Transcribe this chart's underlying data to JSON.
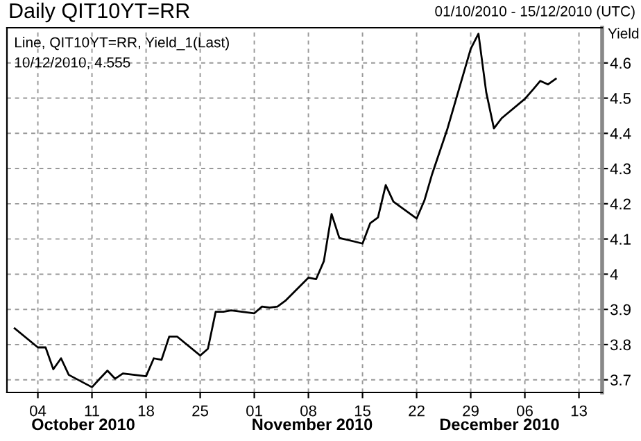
{
  "chart_data": {
    "type": "line",
    "title": "Daily QIT10YT=RR",
    "subtitle": "01/10/2010 - 15/12/2010 (UTC)",
    "ylabel": "Yield",
    "annotations": [
      "Line, QIT10YT=RR, Yield_1(Last)",
      "10/12/2010, 4.555",
      "October 2010",
      "November 2010",
      "December 2010"
    ],
    "x": [
      "2010-10-01",
      "2010-10-04",
      "2010-10-05",
      "2010-10-06",
      "2010-10-07",
      "2010-10-08",
      "2010-10-11",
      "2010-10-12",
      "2010-10-13",
      "2010-10-14",
      "2010-10-15",
      "2010-10-18",
      "2010-10-19",
      "2010-10-20",
      "2010-10-21",
      "2010-10-22",
      "2010-10-25",
      "2010-10-26",
      "2010-10-27",
      "2010-10-28",
      "2010-10-29",
      "2010-11-01",
      "2010-11-02",
      "2010-11-03",
      "2010-11-04",
      "2010-11-05",
      "2010-11-08",
      "2010-11-09",
      "2010-11-10",
      "2010-11-11",
      "2010-11-12",
      "2010-11-15",
      "2010-11-16",
      "2010-11-17",
      "2010-11-18",
      "2010-11-19",
      "2010-11-22",
      "2010-11-23",
      "2010-11-24",
      "2010-11-25",
      "2010-11-26",
      "2010-11-29",
      "2010-11-30",
      "2010-12-01",
      "2010-12-02",
      "2010-12-03",
      "2010-12-06",
      "2010-12-07",
      "2010-12-08",
      "2010-12-09",
      "2010-12-10"
    ],
    "series": [
      {
        "color": "#000000",
        "values": [
          3.846,
          3.792,
          3.792,
          3.73,
          3.761,
          3.714,
          3.679,
          3.703,
          3.726,
          3.703,
          3.718,
          3.71,
          3.761,
          3.757,
          3.823,
          3.823,
          3.769,
          3.788,
          3.893,
          3.893,
          3.897,
          3.889,
          3.908,
          3.905,
          3.908,
          3.924,
          3.99,
          3.986,
          4.037,
          4.171,
          4.103,
          4.087,
          4.145,
          4.161,
          4.253,
          4.206,
          4.158,
          4.209,
          4.284,
          4.349,
          4.414,
          4.64,
          4.683,
          4.517,
          4.414,
          4.443,
          4.498,
          4.523,
          4.549,
          4.539,
          4.555
        ]
      }
    ],
    "xlim": [
      "2010-09-30",
      "2010-12-16"
    ],
    "xticks": [
      {
        "value": "2010-10-04",
        "label": "04"
      },
      {
        "value": "2010-10-11",
        "label": "11"
      },
      {
        "value": "2010-10-18",
        "label": "18"
      },
      {
        "value": "2010-10-25",
        "label": "25"
      },
      {
        "value": "2010-11-01",
        "label": "01"
      },
      {
        "value": "2010-11-08",
        "label": "08"
      },
      {
        "value": "2010-11-15",
        "label": "15"
      },
      {
        "value": "2010-11-22",
        "label": "22"
      },
      {
        "value": "2010-11-29",
        "label": "29"
      },
      {
        "value": "2010-12-06",
        "label": "06"
      },
      {
        "value": "2010-12-13",
        "label": "13"
      }
    ],
    "ylim": [
      3.664,
      4.7
    ],
    "yticks": [
      3.7,
      3.8,
      3.9,
      4,
      4.1,
      4.2,
      4.3,
      4.4,
      4.5,
      4.6
    ],
    "grid": true,
    "legend": false,
    "marker": "none",
    "line_style": "solid"
  }
}
